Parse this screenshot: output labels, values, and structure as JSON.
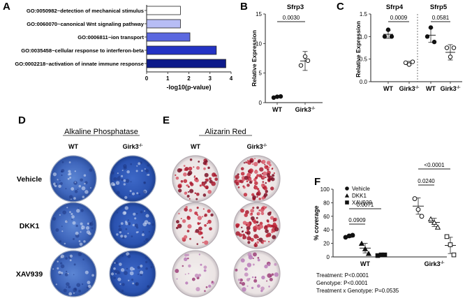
{
  "panels": {
    "A": "A",
    "B": "B",
    "C": "C",
    "D": "D",
    "E": "E",
    "F": "F"
  },
  "colors": {
    "bar1": "#ffffff",
    "bar2": "#b7bdf5",
    "bar3": "#5b68e0",
    "bar4": "#2433c4",
    "bar5": "#0d1a8a",
    "alp": "#4a74c8",
    "alizarin": "#b0213c",
    "plate_bg": "#f4f2f1"
  },
  "chart_data": [
    {
      "id": "A",
      "type": "bar",
      "orientation": "horizontal",
      "categories": [
        "GO:0050982~detection of mechanical stimulus",
        "GO:0060070~canonical Wnt signaling pathway",
        "GO:0006811~ion transport",
        "GO:0035458~cellular response to interferon-beta",
        "GO:0002218~activation of innate immune response"
      ],
      "values": [
        1.6,
        1.6,
        2.05,
        3.3,
        3.75
      ],
      "xlabel": "-log10(p-value)",
      "xlim": [
        0,
        4
      ],
      "xticks": [
        "0",
        "1",
        "2",
        "3",
        "4"
      ]
    },
    {
      "id": "B",
      "type": "scatter",
      "title": "Sfrp3",
      "ylabel": "Relative Expression",
      "ylim": [
        0,
        15
      ],
      "yticks": [
        "0",
        "5",
        "10",
        "15"
      ],
      "groups": [
        "WT",
        "Girk3"
      ],
      "group_sup": [
        "",
        "-/-"
      ],
      "points": [
        [
          0.85,
          1.0,
          1.05
        ],
        [
          7.8,
          6.3,
          7.1
        ]
      ],
      "mean": [
        1.0,
        7.05
      ],
      "sd": [
        0.1,
        1.6
      ],
      "comparisons": [
        {
          "p": "0.0030"
        }
      ]
    },
    {
      "id": "C",
      "type": "scatter",
      "ylabel": "Relative Expression",
      "ylim": [
        0,
        1.5
      ],
      "yticks": [
        "0.0",
        "0.5",
        "1.0",
        "1.5"
      ],
      "genes": [
        "Sfrp4",
        "Sfrp5"
      ],
      "groups": [
        "WT",
        "Girk3",
        "WT",
        "Girk3"
      ],
      "group_sup": [
        "",
        "-/-",
        "",
        "-/-"
      ],
      "points": [
        [
          1.0,
          1.15,
          1.0
        ],
        [
          0.42,
          0.38,
          0.44
        ],
        [
          1.0,
          1.2,
          0.88
        ],
        [
          0.75,
          0.55,
          0.75
        ]
      ],
      "mean": [
        1.05,
        0.41,
        1.03,
        0.65
      ],
      "sd": [
        0.09,
        0.04,
        0.16,
        0.17
      ],
      "comparisons": [
        {
          "p": "0.0009"
        },
        {
          "p": "0.0581"
        }
      ]
    },
    {
      "id": "F",
      "type": "scatter",
      "ylabel": "% coverage",
      "ylim": [
        0,
        100
      ],
      "yticks": [
        "0",
        "20",
        "40",
        "60",
        "80",
        "100"
      ],
      "groups": [
        "WT",
        "Girk3"
      ],
      "group_sup": [
        "",
        "-/-"
      ],
      "legend": [
        "Vehicle",
        "DKK1",
        "XAV939"
      ],
      "points": {
        "WT": {
          "Vehicle": [
            29,
            31,
            32
          ],
          "DKK1": [
            20,
            12,
            5
          ],
          "XAV939": [
            2,
            3,
            3
          ]
        },
        "Girk3": {
          "Vehicle": [
            86,
            70,
            60
          ],
          "DKK1": [
            56,
            51,
            44
          ],
          "XAV939": [
            30,
            18,
            3
          ]
        }
      },
      "mean": {
        "WT": [
          30,
          13,
          2.5
        ],
        "Girk3": [
          75,
          51,
          17
        ]
      },
      "sd": {
        "WT": [
          1.5,
          7,
          0.5
        ],
        "Girk3": [
          12,
          6,
          12
        ]
      },
      "comparisons": [
        {
          "p": "0.0909"
        },
        {
          "p": "0.0071"
        },
        {
          "p": "0.0240"
        },
        {
          "p": "<0.0001"
        }
      ],
      "stats": [
        "Treatment: P<0.0001",
        "Genotype: P<0.0001",
        "Treatment x Genotype: P=0.0535"
      ]
    }
  ],
  "plates": {
    "alp_title": "Alkaline Phosphatase",
    "ali_title": "Alizarin Red",
    "col_wt": "WT",
    "col_ko": "Girk3",
    "col_ko_sup": "-/-",
    "rows": [
      "Vehicle",
      "DKK1",
      "XAV939"
    ]
  }
}
